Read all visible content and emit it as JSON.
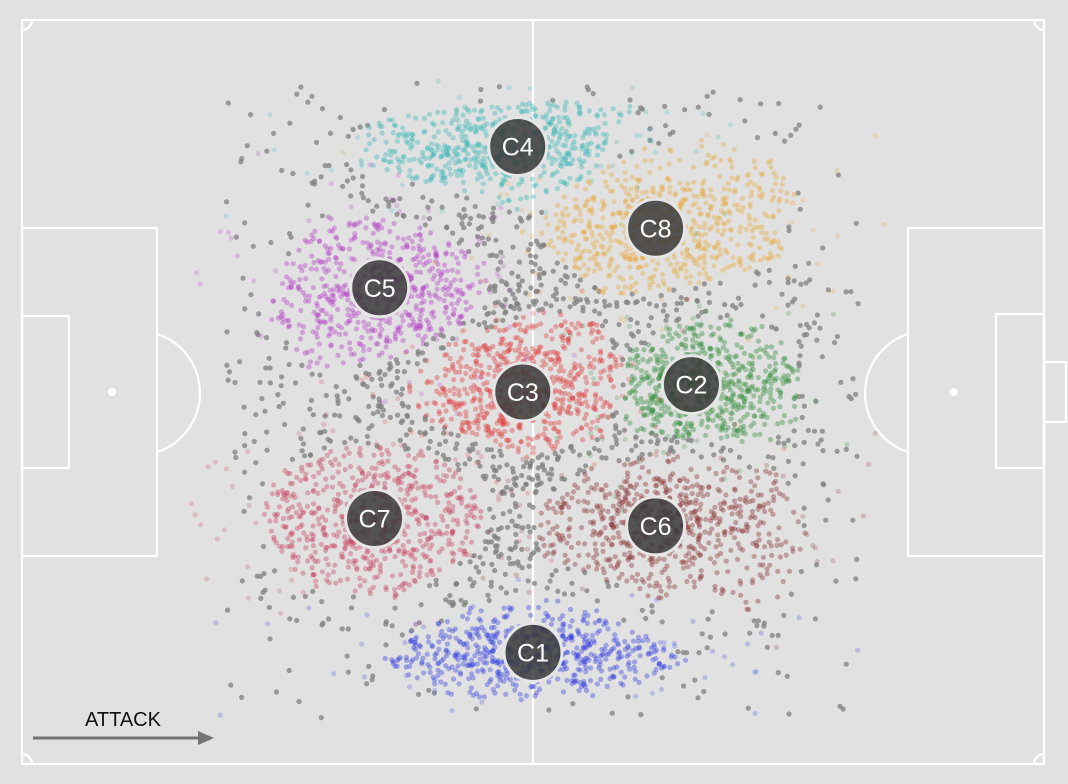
{
  "chart_data": {
    "type": "scatter",
    "title": "",
    "xlabel": "",
    "ylabel": "",
    "direction_label": "ATTACK",
    "background_color": "#e1e1e1",
    "boundary_point_color": "#7f7f7f",
    "clusters": [
      {
        "label": "C1",
        "color": "#2f3de0",
        "center": [
          50,
          85
        ],
        "spread": [
          15,
          4.5
        ],
        "hull": [
          [
            35,
            86
          ],
          [
            42,
            80
          ],
          [
            50,
            76
          ],
          [
            58,
            80
          ],
          [
            65,
            86
          ],
          [
            58,
            91
          ],
          [
            50,
            92
          ],
          [
            42,
            91
          ]
        ]
      },
      {
        "label": "C2",
        "color": "#2e8c35",
        "center": [
          65.5,
          49
        ],
        "spread": [
          8,
          8
        ],
        "hull": [
          [
            59,
            45
          ],
          [
            64,
            41
          ],
          [
            71,
            40
          ],
          [
            76,
            44
          ],
          [
            76,
            54
          ],
          [
            72,
            58
          ],
          [
            64,
            56
          ],
          [
            59,
            55
          ]
        ]
      },
      {
        "label": "C3",
        "color": "#e03b3b",
        "center": [
          49,
          50
        ],
        "spread": [
          9,
          8
        ],
        "hull": [
          [
            37,
            50
          ],
          [
            42,
            43
          ],
          [
            51,
            39
          ],
          [
            56,
            40
          ],
          [
            59,
            47
          ],
          [
            57,
            56
          ],
          [
            49,
            59
          ],
          [
            40,
            54
          ]
        ]
      },
      {
        "label": "C4",
        "color": "#38b6b6",
        "center": [
          48.5,
          17
        ],
        "spread": [
          14,
          5
        ],
        "hull": [
          [
            34,
            14
          ],
          [
            40,
            12
          ],
          [
            50,
            11
          ],
          [
            60,
            11
          ],
          [
            57,
            19
          ],
          [
            50,
            26
          ],
          [
            39,
            22
          ],
          [
            33,
            20
          ]
        ]
      },
      {
        "label": "C5",
        "color": "#b23ac4",
        "center": [
          35,
          36
        ],
        "spread": [
          10,
          9
        ],
        "hull": [
          [
            26,
            32
          ],
          [
            30,
            26
          ],
          [
            38,
            27
          ],
          [
            46,
            33
          ],
          [
            44,
            40
          ],
          [
            36,
            46
          ],
          [
            28,
            47
          ],
          [
            24,
            40
          ]
        ]
      },
      {
        "label": "C6",
        "color": "#8a2e2e",
        "center": [
          62,
          68
        ],
        "spread": [
          12,
          8
        ],
        "hull": [
          [
            50,
            66
          ],
          [
            56,
            60
          ],
          [
            64,
            58
          ],
          [
            74,
            61
          ],
          [
            77,
            70
          ],
          [
            73,
            80
          ],
          [
            62,
            78
          ],
          [
            51,
            72
          ]
        ]
      },
      {
        "label": "C7",
        "color": "#c93e5c",
        "center": [
          34.5,
          67
        ],
        "spread": [
          10,
          9
        ],
        "hull": [
          [
            24,
            61
          ],
          [
            31,
            57
          ],
          [
            40,
            58
          ],
          [
            46,
            64
          ],
          [
            44,
            72
          ],
          [
            36,
            78
          ],
          [
            28,
            76
          ],
          [
            23,
            68
          ]
        ]
      },
      {
        "label": "C8",
        "color": "#e8a93d",
        "center": [
          62,
          28
        ],
        "spread": [
          12,
          8
        ],
        "hull": [
          [
            50,
            29
          ],
          [
            53,
            23
          ],
          [
            61,
            17
          ],
          [
            70,
            15
          ],
          [
            76,
            22
          ],
          [
            74,
            33
          ],
          [
            65,
            36
          ],
          [
            57,
            37
          ]
        ]
      }
    ]
  }
}
